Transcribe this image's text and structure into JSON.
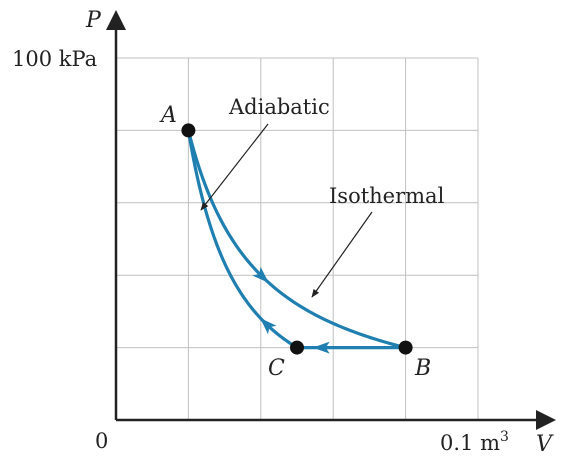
{
  "axes": {
    "y_label": "P",
    "x_label": "V",
    "y_max_label": "100 kPa",
    "x_max_label": "0.1 m",
    "x_max_label_sup": "3",
    "origin_label": "0",
    "x_range": [
      0,
      0.1
    ],
    "y_range": [
      0,
      100
    ],
    "grid": true,
    "grid_divisions": 5
  },
  "points": {
    "A": {
      "label": "A",
      "V": 0.02,
      "P": 80
    },
    "B": {
      "label": "B",
      "V": 0.08,
      "P": 20
    },
    "C": {
      "label": "C",
      "V": 0.05,
      "P": 20
    }
  },
  "curves": [
    {
      "name": "isothermal",
      "label": "Isothermal",
      "from": "A",
      "to": "B"
    },
    {
      "name": "adiabatic",
      "label": "Adiabatic",
      "from": "C",
      "to": "A"
    },
    {
      "name": "isobaric",
      "from": "B",
      "to": "C"
    }
  ],
  "colors": {
    "curve": "#1f7fb0",
    "grid": "#c0c0c0",
    "axis": "#222222",
    "point": "#111111",
    "leader": "#222222"
  }
}
